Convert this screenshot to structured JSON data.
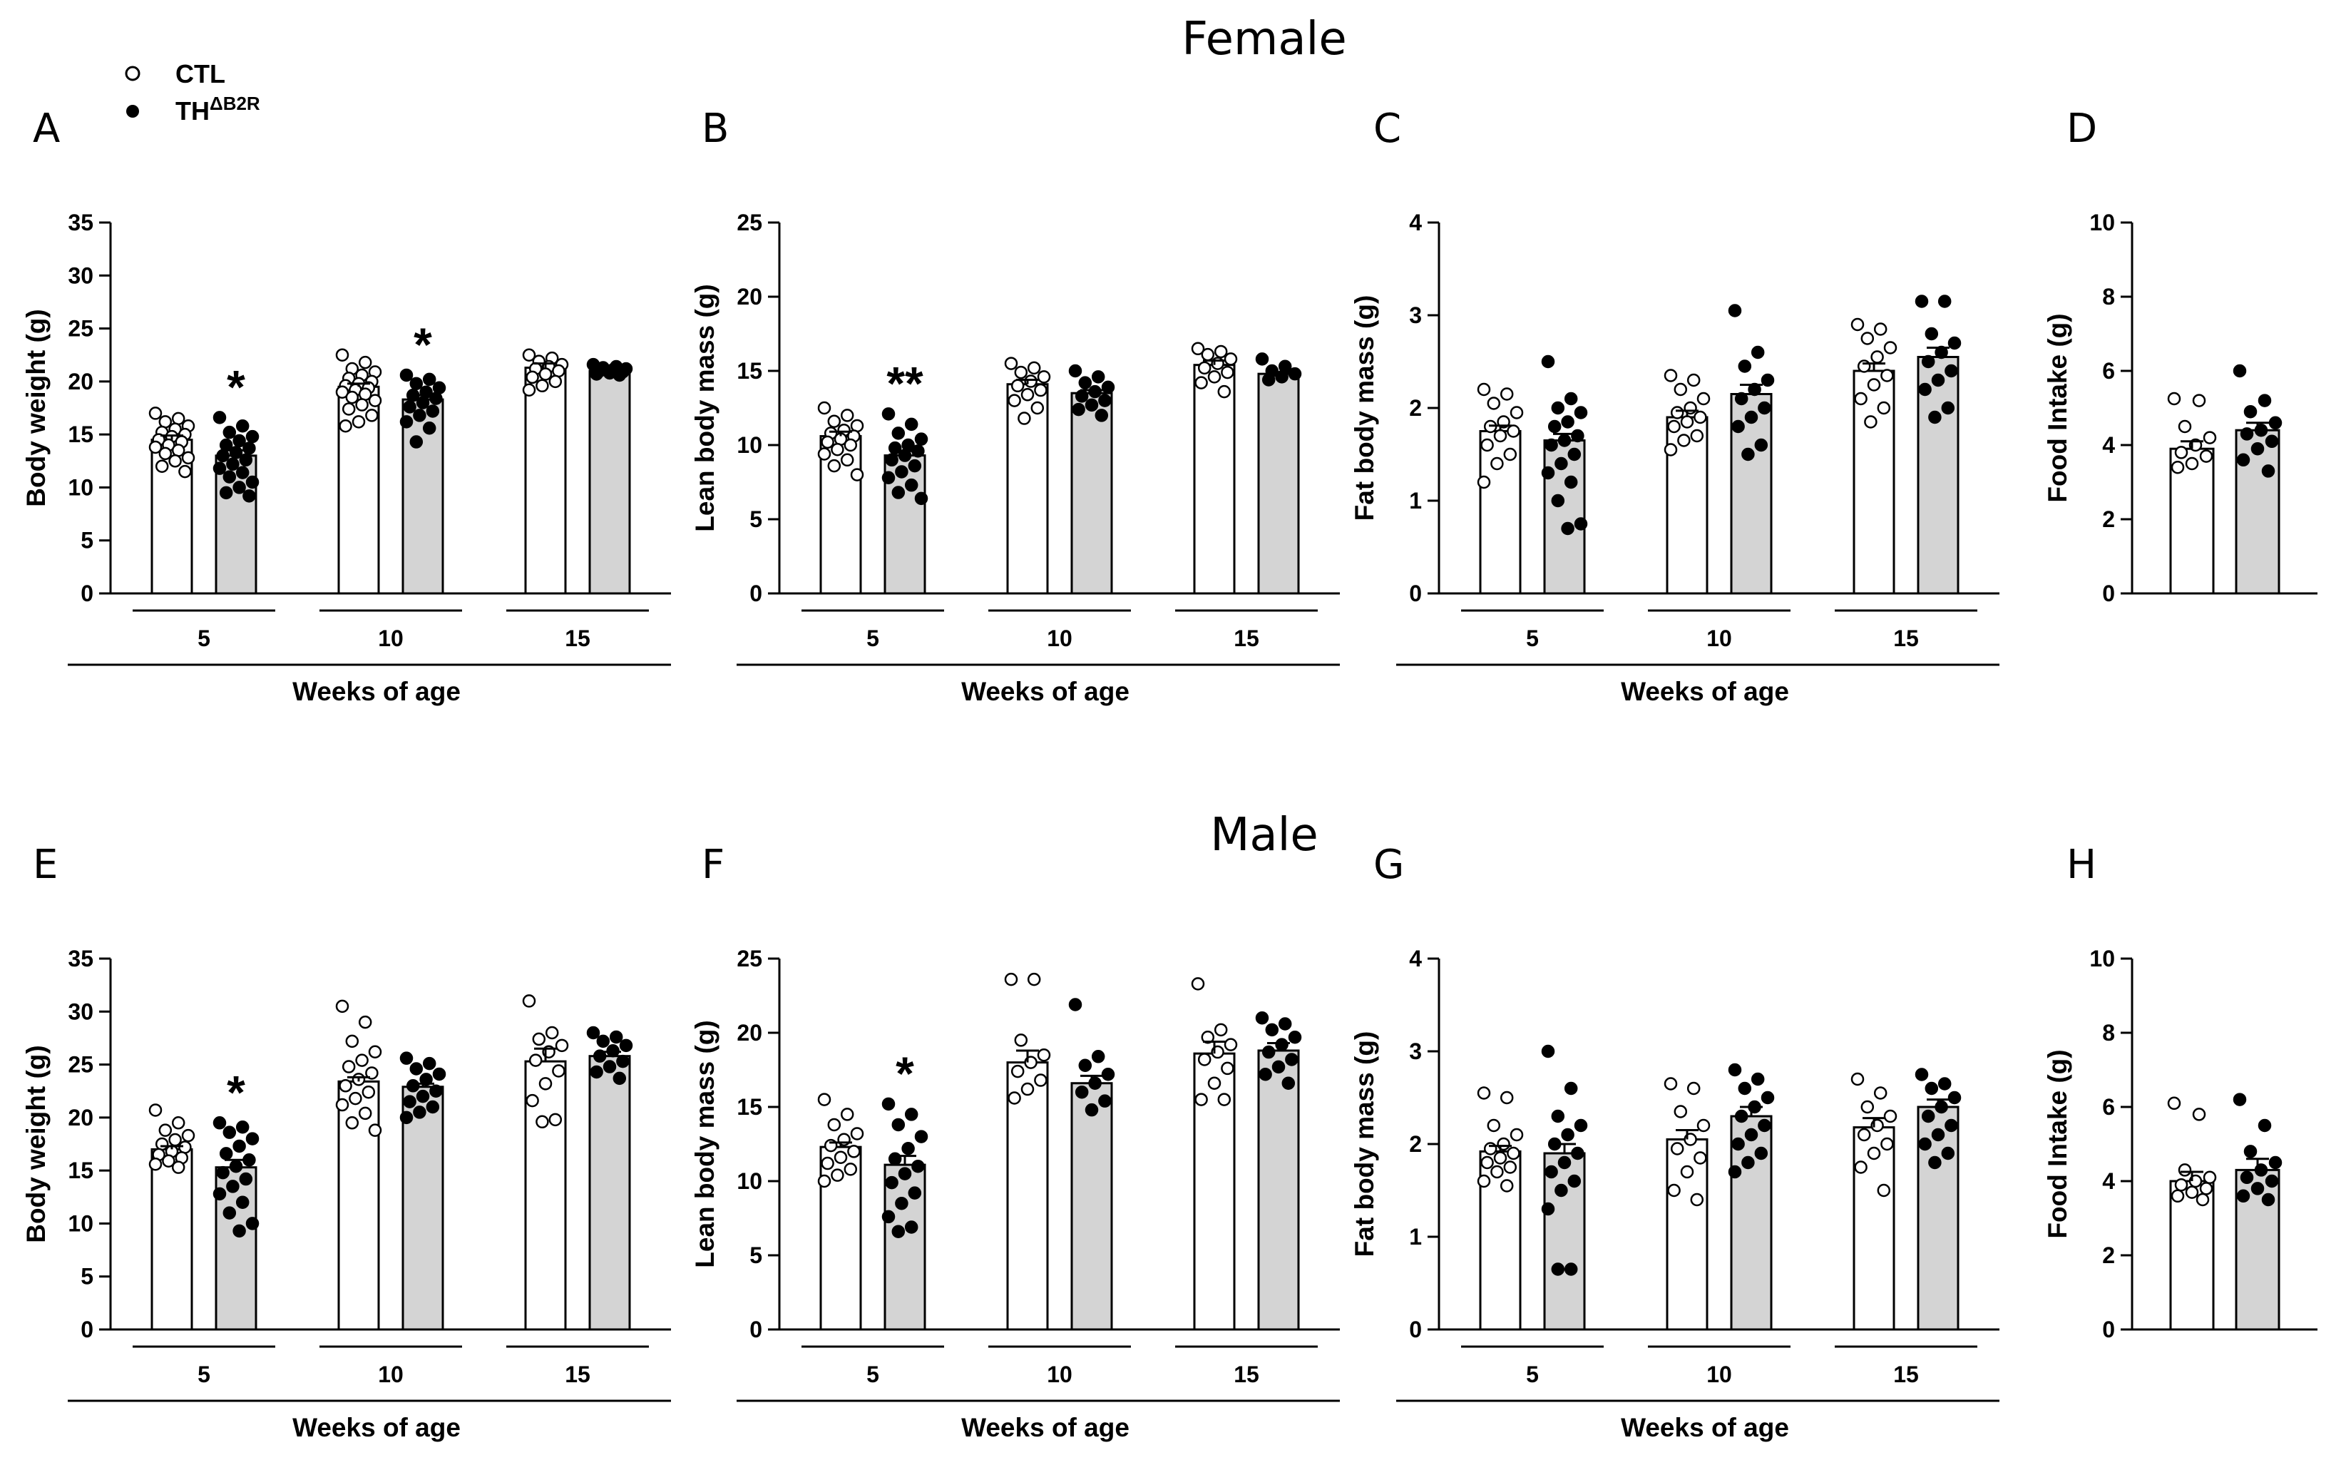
{
  "row_titles": [
    "Female",
    "Male"
  ],
  "legend": [
    {
      "label": "CTL",
      "marker": "open-circle"
    },
    {
      "label": "TH",
      "superscript": "ΔB2R",
      "marker": "filled-circle"
    }
  ],
  "colors": {
    "ctl_bar": "#ffffff",
    "th_bar": "#d4d4d4",
    "ink": "#000000"
  },
  "chart_data": [
    {
      "panel": "A",
      "type": "bar",
      "ylabel": "Body weight (g)",
      "xlabel": "Weeks of age",
      "categories": [
        "5",
        "10",
        "15"
      ],
      "ylim": [
        0,
        35
      ],
      "yticks": [
        0,
        5,
        10,
        15,
        20,
        25,
        30,
        35
      ],
      "series": [
        {
          "values": [
            14.5,
            19.5,
            21.3
          ],
          "sem": [
            0.4,
            0.3,
            0.4
          ],
          "points": [
            [
              17,
              16.5,
              16.2,
              15.8,
              15.5,
              15.2,
              15,
              14.8,
              14.5,
              14.3,
              14,
              13.8,
              13.5,
              13.2,
              12.8,
              12.5,
              12,
              11.5
            ],
            [
              22.5,
              21.8,
              21.2,
              20.9,
              20.6,
              20.3,
              20,
              19.8,
              19.6,
              19.4,
              19.2,
              19,
              18.8,
              18.5,
              18.2,
              17.8,
              17.4,
              16.8,
              16.2,
              15.8
            ],
            [
              22.5,
              22.2,
              21.9,
              21.6,
              21.4,
              21.2,
              21,
              20.7,
              20.4,
              20,
              19.6,
              19.2
            ]
          ]
        },
        {
          "values": [
            13,
            18.3,
            21
          ],
          "sem": [
            0.5,
            0.4,
            0.1
          ],
          "points": [
            [
              16.6,
              15.8,
              15.2,
              14.8,
              14.4,
              14,
              13.7,
              13.3,
              13,
              12.6,
              12.2,
              11.8,
              11.4,
              11,
              10.5,
              10,
              9.5,
              9.2
            ],
            [
              20.6,
              20.2,
              19.8,
              19.4,
              19,
              18.7,
              18.4,
              18,
              17.6,
              17.2,
              16.8,
              16.2,
              15.6,
              14.3
            ],
            [
              21.6,
              21.4,
              21.3,
              21.2,
              21.1,
              21,
              20.9,
              20.8,
              20.7,
              20.6
            ]
          ]
        }
      ],
      "significance": [
        {
          "category": "5",
          "label": "*"
        },
        {
          "category": "10",
          "label": "*"
        }
      ]
    },
    {
      "panel": "B",
      "type": "bar",
      "ylabel": "Lean body mass (g)",
      "xlabel": "Weeks of age",
      "categories": [
        "5",
        "10",
        "15"
      ],
      "ylim": [
        0,
        25
      ],
      "yticks": [
        0,
        5,
        10,
        15,
        20,
        25
      ],
      "series": [
        {
          "values": [
            10.6,
            14.1,
            15.4
          ],
          "sem": [
            0.3,
            0.3,
            0.3
          ],
          "points": [
            [
              12.5,
              12,
              11.6,
              11.3,
              11,
              10.8,
              10.6,
              10.4,
              10.2,
              10,
              9.7,
              9.4,
              9,
              8.6,
              8
            ],
            [
              15.5,
              15.2,
              14.9,
              14.6,
              14.3,
              14,
              13.7,
              13.4,
              13,
              12.5,
              11.8
            ],
            [
              16.5,
              16.3,
              16.1,
              15.8,
              15.5,
              15.2,
              14.9,
              14.6,
              14.2,
              13.6
            ]
          ]
        },
        {
          "values": [
            9.3,
            13.5,
            14.8
          ],
          "sem": [
            0.3,
            0.2,
            0.1
          ],
          "points": [
            [
              12.1,
              11.4,
              10.8,
              10.4,
              10,
              9.8,
              9.6,
              9.3,
              9,
              8.6,
              8.2,
              7.8,
              7.3,
              6.8,
              6.4
            ],
            [
              15,
              14.6,
              14.2,
              13.9,
              13.6,
              13.3,
              13,
              12.7,
              12.4,
              12
            ],
            [
              15.8,
              15.3,
              15,
              14.8,
              14.6,
              14.4
            ]
          ]
        }
      ],
      "significance": [
        {
          "category": "5",
          "label": "**"
        }
      ]
    },
    {
      "panel": "C",
      "type": "bar",
      "ylabel": "Fat body mass (g)",
      "xlabel": "Weeks of age",
      "categories": [
        "5",
        "10",
        "15"
      ],
      "ylim": [
        0,
        4
      ],
      "yticks": [
        0,
        1,
        2,
        3,
        4
      ],
      "series": [
        {
          "values": [
            1.75,
            1.9,
            2.4
          ],
          "sem": [
            0.06,
            0.07,
            0.08
          ],
          "points": [
            [
              2.2,
              2.15,
              2.05,
              1.95,
              1.85,
              1.8,
              1.75,
              1.7,
              1.6,
              1.5,
              1.4,
              1.2
            ],
            [
              2.35,
              2.3,
              2.2,
              2.1,
              2,
              1.95,
              1.9,
              1.85,
              1.8,
              1.7,
              1.65,
              1.55
            ],
            [
              2.9,
              2.85,
              2.75,
              2.65,
              2.55,
              2.45,
              2.35,
              2.25,
              2.1,
              2,
              1.85
            ]
          ]
        },
        {
          "values": [
            1.65,
            2.15,
            2.55
          ],
          "sem": [
            0.07,
            0.1,
            0.1
          ],
          "points": [
            [
              2.5,
              2.1,
              2,
              1.95,
              1.85,
              1.8,
              1.7,
              1.65,
              1.6,
              1.5,
              1.4,
              1.3,
              1.2,
              1,
              0.75,
              0.7
            ],
            [
              3.05,
              2.6,
              2.45,
              2.3,
              2.2,
              2.1,
              2,
              1.9,
              1.8,
              1.6,
              1.5
            ],
            [
              3.15,
              3.15,
              2.8,
              2.7,
              2.6,
              2.5,
              2.4,
              2.3,
              2.2,
              2,
              1.9
            ]
          ]
        }
      ]
    },
    {
      "panel": "D",
      "type": "bar",
      "ylabel": "Food Intake (g)",
      "categories": [
        ""
      ],
      "ylim": [
        0,
        10
      ],
      "yticks": [
        0,
        2,
        4,
        6,
        8,
        10
      ],
      "series": [
        {
          "values": [
            3.9
          ],
          "sem": [
            0.2
          ],
          "points": [
            [
              5.25,
              5.2,
              4.5,
              4.2,
              4,
              3.8,
              3.7,
              3.5,
              3.4
            ]
          ]
        },
        {
          "values": [
            4.4
          ],
          "sem": [
            0.2
          ],
          "points": [
            [
              6,
              5.2,
              4.9,
              4.6,
              4.4,
              4.3,
              4.1,
              3.9,
              3.6,
              3.3
            ]
          ]
        }
      ]
    },
    {
      "panel": "E",
      "type": "bar",
      "ylabel": "Body weight (g)",
      "xlabel": "Weeks of age",
      "categories": [
        "5",
        "10",
        "15"
      ],
      "ylim": [
        0,
        35
      ],
      "yticks": [
        0,
        5,
        10,
        15,
        20,
        25,
        30,
        35
      ],
      "series": [
        {
          "values": [
            17,
            23.4,
            25.3
          ],
          "sem": [
            0.3,
            0.4,
            1.2
          ],
          "points": [
            [
              20.7,
              19.5,
              18.8,
              18.3,
              17.9,
              17.5,
              17.2,
              16.8,
              16.5,
              16.2,
              15.9,
              15.6,
              15.3
            ],
            [
              30.5,
              29,
              27.2,
              26.2,
              25.4,
              24.8,
              24.2,
              23.6,
              23,
              22.4,
              21.8,
              21.2,
              20.4,
              19.5,
              18.8
            ],
            [
              31,
              28,
              27.4,
              26.8,
              26.2,
              25.4,
              24.4,
              23.2,
              21.6,
              19.8,
              19.6
            ]
          ]
        },
        {
          "values": [
            15.3,
            22.9,
            25.8
          ],
          "sem": [
            0.7,
            0.3,
            0.4
          ],
          "points": [
            [
              19.5,
              19.1,
              18.6,
              18,
              17.3,
              16.6,
              16,
              15.4,
              14.8,
              14.2,
              13.5,
              12.8,
              12,
              11,
              10,
              9.3
            ],
            [
              25.6,
              25.1,
              24.6,
              24.1,
              23.6,
              23,
              22.5,
              22,
              21.5,
              21,
              20.5,
              20
            ],
            [
              28,
              27.6,
              27.2,
              26.8,
              26.3,
              25.8,
              25.3,
              24.8,
              24.3,
              23.7
            ]
          ]
        }
      ],
      "significance": [
        {
          "category": "5",
          "label": "*"
        }
      ]
    },
    {
      "panel": "F",
      "type": "bar",
      "ylabel": "Lean body mass (g)",
      "xlabel": "Weeks of age",
      "categories": [
        "5",
        "10",
        "15"
      ],
      "ylim": [
        0,
        25
      ],
      "yticks": [
        0,
        5,
        10,
        15,
        20,
        25
      ],
      "series": [
        {
          "values": [
            12.3,
            18,
            18.6
          ],
          "sem": [
            0.3,
            0.8,
            0.8
          ],
          "points": [
            [
              15.5,
              14.5,
              13.8,
              13.2,
              12.8,
              12.4,
              12,
              11.6,
              11.2,
              10.8,
              10.4,
              10
            ],
            [
              23.6,
              23.6,
              19.5,
              18.5,
              18,
              17.4,
              16.8,
              16.2,
              15.6
            ],
            [
              23.3,
              20.2,
              19.7,
              19.2,
              18.7,
              18.2,
              17.6,
              16.6,
              15.5,
              15.5
            ]
          ]
        },
        {
          "values": [
            11.1,
            16.6,
            18.8
          ],
          "sem": [
            0.6,
            0.5,
            0.5
          ],
          "points": [
            [
              15.2,
              14.5,
              13.8,
              13,
              12.2,
              11.5,
              11,
              10.5,
              9.9,
              9.2,
              8.5,
              7.6,
              6.9,
              6.6
            ],
            [
              21.9,
              18.4,
              17.8,
              17.2,
              16.6,
              16,
              15.4,
              14.8
            ],
            [
              21,
              20.6,
              20.2,
              19.7,
              19.2,
              18.7,
              18.2,
              17.7,
              17.2,
              16.6
            ]
          ]
        }
      ],
      "significance": [
        {
          "category": "5",
          "label": "*"
        }
      ]
    },
    {
      "panel": "G",
      "type": "bar",
      "ylabel": "Fat body mass (g)",
      "xlabel": "Weeks of age",
      "categories": [
        "5",
        "10",
        "15"
      ],
      "ylim": [
        0,
        4
      ],
      "yticks": [
        0,
        1,
        2,
        3,
        4
      ],
      "series": [
        {
          "values": [
            1.92,
            2.05,
            2.18
          ],
          "sem": [
            0.06,
            0.1,
            0.1
          ],
          "points": [
            [
              2.55,
              2.5,
              2.2,
              2.1,
              2,
              1.95,
              1.9,
              1.85,
              1.8,
              1.75,
              1.7,
              1.6,
              1.55
            ],
            [
              2.65,
              2.6,
              2.35,
              2.2,
              2.05,
              1.95,
              1.85,
              1.7,
              1.5,
              1.4
            ],
            [
              2.7,
              2.55,
              2.4,
              2.3,
              2.2,
              2.1,
              2,
              1.9,
              1.75,
              1.5
            ]
          ]
        },
        {
          "values": [
            1.9,
            2.3,
            2.4
          ],
          "sem": [
            0.1,
            0.1,
            0.08
          ],
          "points": [
            [
              3,
              2.6,
              2.3,
              2.2,
              2.1,
              2,
              1.9,
              1.8,
              1.7,
              1.6,
              1.5,
              1.3,
              0.65,
              0.65
            ],
            [
              2.8,
              2.7,
              2.6,
              2.5,
              2.4,
              2.3,
              2.2,
              2.1,
              2,
              1.9,
              1.8,
              1.7
            ],
            [
              2.75,
              2.65,
              2.6,
              2.5,
              2.4,
              2.3,
              2.2,
              2.1,
              2,
              1.9,
              1.8
            ]
          ]
        }
      ]
    },
    {
      "panel": "H",
      "type": "bar",
      "ylabel": "Food Intake (g)",
      "categories": [
        ""
      ],
      "ylim": [
        0,
        10
      ],
      "yticks": [
        0,
        2,
        4,
        6,
        8,
        10
      ],
      "series": [
        {
          "values": [
            4
          ],
          "sem": [
            0.25
          ],
          "points": [
            [
              6.1,
              5.8,
              4.3,
              4.1,
              4,
              3.9,
              3.8,
              3.7,
              3.6,
              3.5
            ]
          ]
        },
        {
          "values": [
            4.3
          ],
          "sem": [
            0.3
          ],
          "points": [
            [
              6.2,
              5.5,
              4.8,
              4.5,
              4.3,
              4.1,
              4,
              3.8,
              3.6,
              3.5
            ]
          ]
        }
      ]
    }
  ]
}
